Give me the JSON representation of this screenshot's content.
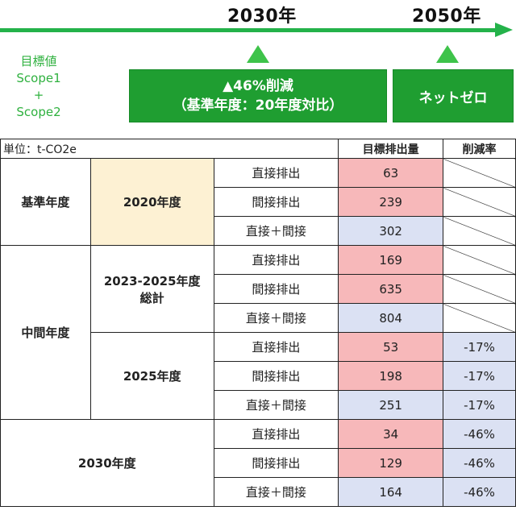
{
  "header": {
    "year_2030": "2030年",
    "year_2050": "2050年",
    "target_label_lines": [
      "目標値",
      "Scope1",
      "+",
      "Scope2"
    ],
    "box_2030_line1": "▲46%削減",
    "box_2030_line2": "（基準年度：20年度対比）",
    "box_2050": "ネットゼロ",
    "colors": {
      "timeline": "#24b24a",
      "box": "#1f9e31",
      "label": "#2fb13f"
    }
  },
  "table": {
    "unit": "単位：t-CO2e",
    "col_target": "目標排出量",
    "col_rate": "削減率",
    "groups": {
      "base": "基準年度",
      "mid": "中間年度"
    },
    "periods": {
      "p2020": "2020年度",
      "p2023_2025_line1": "2023-2025年度",
      "p2023_2025_line2": "総計",
      "p2025": "2025年度",
      "p2030": "2030年度"
    },
    "types": {
      "direct": "直接排出",
      "indirect": "間接排出",
      "total": "直接＋間接"
    },
    "rows": [
      {
        "value": "63",
        "rate": ""
      },
      {
        "value": "239",
        "rate": ""
      },
      {
        "value": "302",
        "rate": ""
      },
      {
        "value": "169",
        "rate": ""
      },
      {
        "value": "635",
        "rate": ""
      },
      {
        "value": "804",
        "rate": ""
      },
      {
        "value": "53",
        "rate": "-17%"
      },
      {
        "value": "198",
        "rate": "-17%"
      },
      {
        "value": "251",
        "rate": "-17%"
      },
      {
        "value": "34",
        "rate": "-46%"
      },
      {
        "value": "129",
        "rate": "-46%"
      },
      {
        "value": "164",
        "rate": "-46%"
      }
    ],
    "colors": {
      "period_2020": "#fdf1d3",
      "emission": "#f7b8ba",
      "total": "#dbe1f3"
    }
  }
}
